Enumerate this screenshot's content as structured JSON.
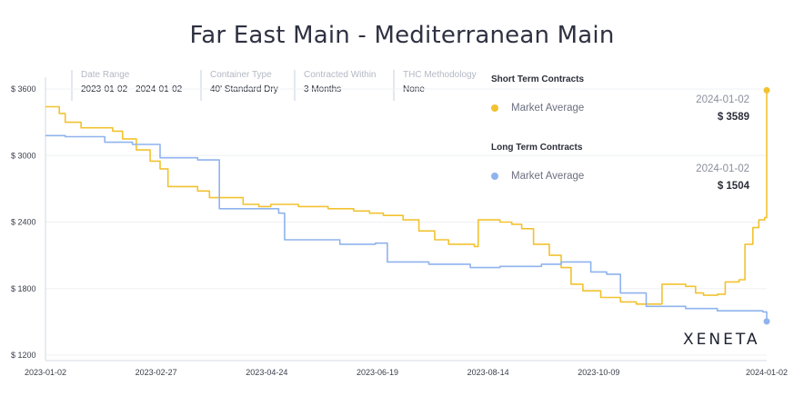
{
  "chart_data": {
    "type": "line",
    "title": "Far East Main - Mediterranean Main",
    "xlabel": "",
    "ylabel": "",
    "ylim": [
      1200,
      3600
    ],
    "y_ticks": [
      "$ 3600",
      "$ 3000",
      "$ 2400",
      "$ 1800",
      "$ 1200"
    ],
    "y_tick_values": [
      3600,
      3000,
      2400,
      1800,
      1200
    ],
    "x_ticks": [
      "2023-01-02",
      "2023-02-27",
      "2023-04-24",
      "2023-06-19",
      "2023-08-14",
      "2023-10-09",
      "2024-01-02"
    ],
    "x_range": [
      "2023-01-02",
      "2024-01-02"
    ],
    "grid": "horizontal",
    "series": [
      {
        "name": "Short Term Contracts - Market Average",
        "color": "#f2c230",
        "points": [
          [
            "2023-01-02",
            3440
          ],
          [
            "2023-01-09",
            3380
          ],
          [
            "2023-01-12",
            3300
          ],
          [
            "2023-01-20",
            3250
          ],
          [
            "2023-02-05",
            3220
          ],
          [
            "2023-02-10",
            3150
          ],
          [
            "2023-02-17",
            3050
          ],
          [
            "2023-02-24",
            2950
          ],
          [
            "2023-03-01",
            2880
          ],
          [
            "2023-03-05",
            2720
          ],
          [
            "2023-03-20",
            2680
          ],
          [
            "2023-03-26",
            2620
          ],
          [
            "2023-04-12",
            2560
          ],
          [
            "2023-04-20",
            2540
          ],
          [
            "2023-04-26",
            2560
          ],
          [
            "2023-05-10",
            2540
          ],
          [
            "2023-05-25",
            2520
          ],
          [
            "2023-06-07",
            2500
          ],
          [
            "2023-06-15",
            2480
          ],
          [
            "2023-06-22",
            2460
          ],
          [
            "2023-07-02",
            2420
          ],
          [
            "2023-07-10",
            2320
          ],
          [
            "2023-07-18",
            2240
          ],
          [
            "2023-07-25",
            2200
          ],
          [
            "2023-08-07",
            2180
          ],
          [
            "2023-08-09",
            2420
          ],
          [
            "2023-08-20",
            2400
          ],
          [
            "2023-08-26",
            2380
          ],
          [
            "2023-08-31",
            2340
          ],
          [
            "2023-09-06",
            2200
          ],
          [
            "2023-09-14",
            2100
          ],
          [
            "2023-09-20",
            1990
          ],
          [
            "2023-09-25",
            1840
          ],
          [
            "2023-10-01",
            1780
          ],
          [
            "2023-10-10",
            1720
          ],
          [
            "2023-10-20",
            1680
          ],
          [
            "2023-10-28",
            1660
          ],
          [
            "2023-11-08",
            1660
          ],
          [
            "2023-11-10",
            1840
          ],
          [
            "2023-11-22",
            1820
          ],
          [
            "2023-11-27",
            1760
          ],
          [
            "2023-12-01",
            1740
          ],
          [
            "2023-12-08",
            1750
          ],
          [
            "2023-12-12",
            1860
          ],
          [
            "2023-12-19",
            1880
          ],
          [
            "2023-12-22",
            2200
          ],
          [
            "2023-12-26",
            2350
          ],
          [
            "2023-12-29",
            2420
          ],
          [
            "2024-01-01",
            2440
          ],
          [
            "2024-01-02",
            3589
          ]
        ]
      },
      {
        "name": "Long Term Contracts - Market Average",
        "color": "#8fb3ee",
        "points": [
          [
            "2023-01-02",
            3180
          ],
          [
            "2023-01-12",
            3170
          ],
          [
            "2023-02-01",
            3120
          ],
          [
            "2023-02-15",
            3100
          ],
          [
            "2023-03-01",
            2980
          ],
          [
            "2023-03-20",
            2960
          ],
          [
            "2023-03-31",
            2520
          ],
          [
            "2023-04-30",
            2480
          ],
          [
            "2023-05-03",
            2240
          ],
          [
            "2023-05-31",
            2200
          ],
          [
            "2023-06-18",
            2210
          ],
          [
            "2023-06-24",
            2040
          ],
          [
            "2023-07-15",
            2020
          ],
          [
            "2023-08-05",
            1990
          ],
          [
            "2023-08-20",
            2000
          ],
          [
            "2023-09-10",
            2020
          ],
          [
            "2023-09-20",
            2040
          ],
          [
            "2023-10-05",
            1950
          ],
          [
            "2023-10-13",
            1930
          ],
          [
            "2023-10-20",
            1760
          ],
          [
            "2023-11-02",
            1640
          ],
          [
            "2023-11-22",
            1620
          ],
          [
            "2023-12-08",
            1600
          ],
          [
            "2023-12-31",
            1590
          ],
          [
            "2024-01-02",
            1504
          ]
        ]
      }
    ]
  },
  "filters": [
    {
      "label": "Date Range",
      "value": "2023-01-02 - 2024-01-02"
    },
    {
      "label": "Container Type",
      "value": "40' Standard Dry"
    },
    {
      "label": "Contracted Within",
      "value": "3 Months"
    },
    {
      "label": "THC Methodology",
      "value": "None"
    }
  ],
  "legend": {
    "short_term": {
      "heading": "Short Term Contracts",
      "item": "Market Average",
      "date": "2024-01-02",
      "value": "$ 3589"
    },
    "long_term": {
      "heading": "Long Term Contracts",
      "item": "Market Average",
      "date": "2024-01-02",
      "value": "$ 1504"
    }
  },
  "logo": "XENETA"
}
